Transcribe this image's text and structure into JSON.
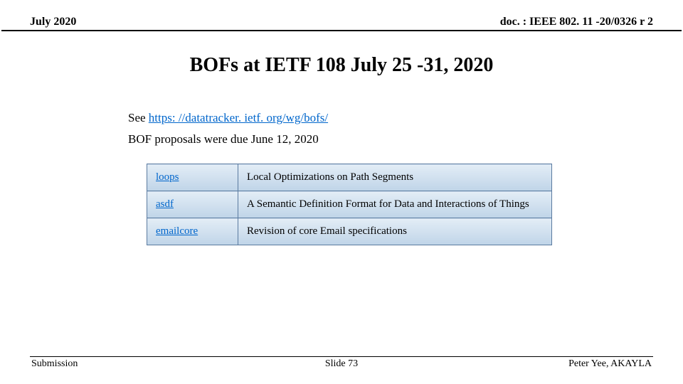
{
  "header": {
    "left": "July 2020",
    "right": "doc. : IEEE 802. 11 -20/0326 r 2"
  },
  "title": "BOFs at IETF 108 July 25 -31, 2020",
  "content": {
    "see_prefix": "See ",
    "see_link": "https: //datatracker. ietf. org/wg/bofs/",
    "due_line": "BOF proposals were due June 12, 2020"
  },
  "table": {
    "rows": [
      {
        "key": "loops",
        "desc": "Local Optimizations on Path Segments"
      },
      {
        "key": "asdf",
        "desc": "A Semantic Definition Format for Data and Interactions of Things"
      },
      {
        "key": "emailcore",
        "desc": "Revision of core Email specifications"
      }
    ],
    "border_color": "#5b7ba0",
    "bg_top": "#e3edf6",
    "bg_bottom": "#bfd4e8",
    "link_color": "#0066cc"
  },
  "footer": {
    "left": "Submission",
    "center": "Slide 73",
    "right": "Peter Yee, AKAYLA"
  }
}
